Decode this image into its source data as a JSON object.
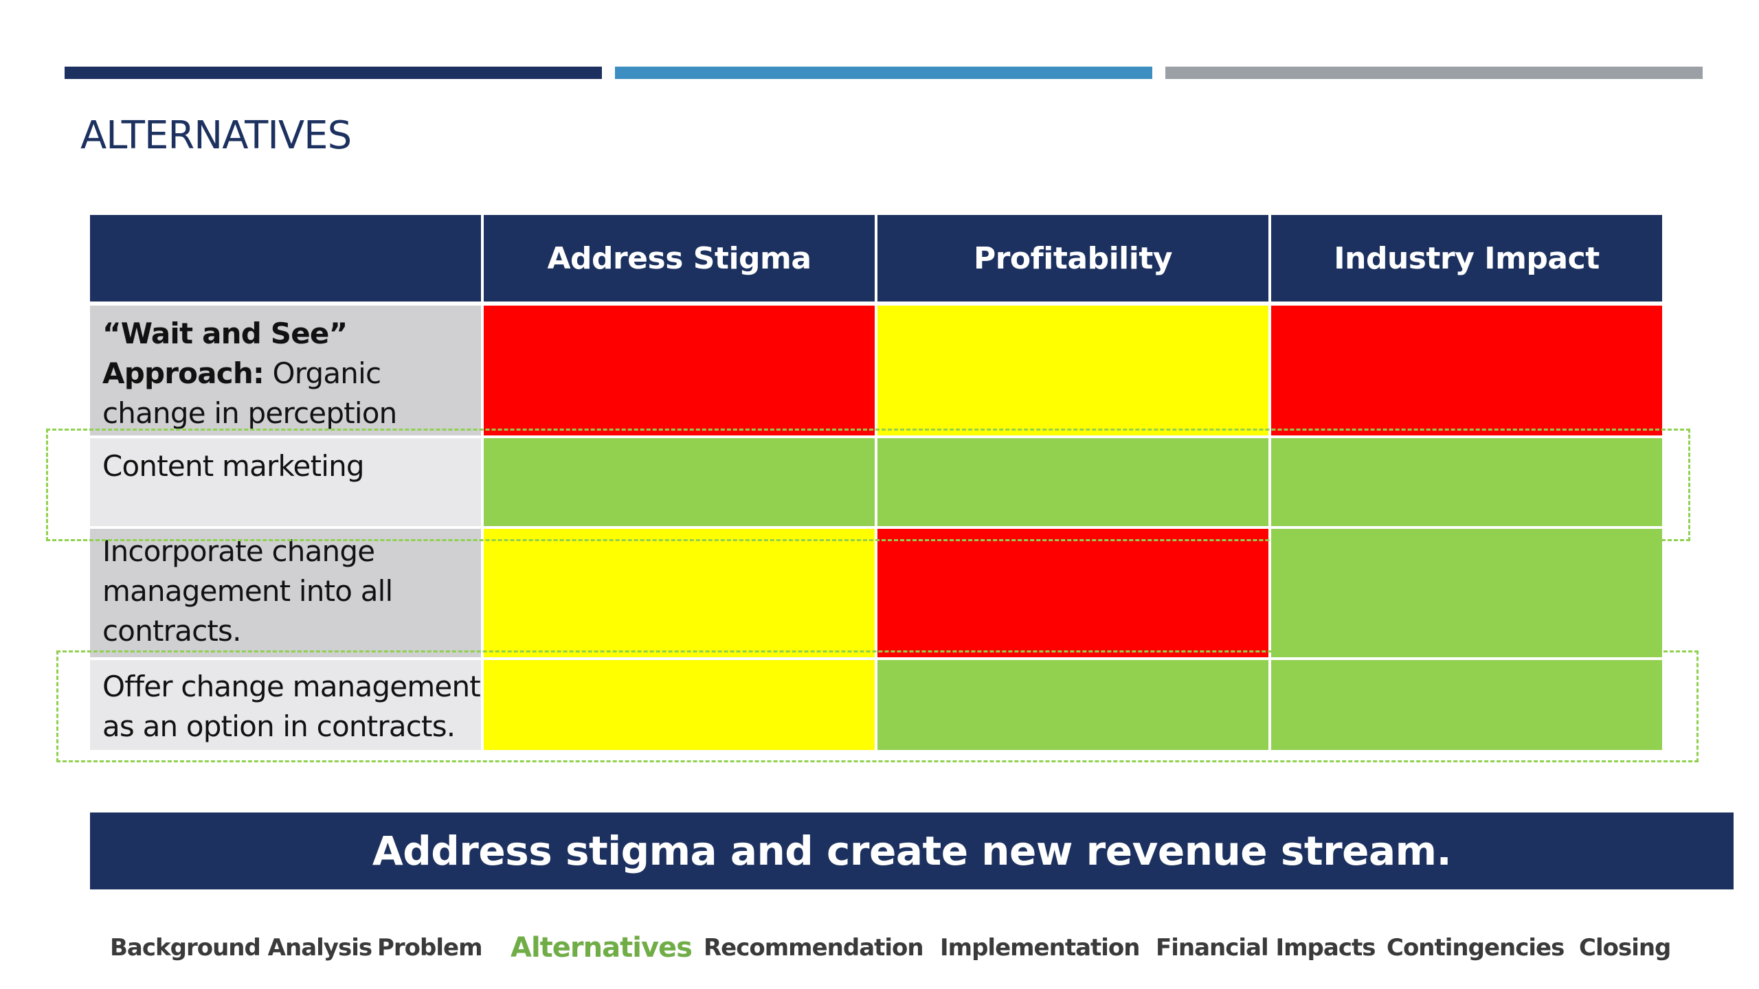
{
  "colors": {
    "navy": "#1c315f",
    "mid_blue": "#3d8fc1",
    "gray": "#9aa0a6",
    "red": "#ff0000",
    "yellow": "#ffff00",
    "green": "#92d050",
    "active_nav": "#70ad47"
  },
  "slide": {
    "title": "ALTERNATIVES"
  },
  "table": {
    "headers": [
      "",
      "Address Stigma",
      "Profitability",
      "Industry Impact"
    ],
    "rows": [
      {
        "label_bold": "“Wait and See” Approach:",
        "label_rest": " Organic change in perception",
        "ratings": [
          "red",
          "yellow",
          "red"
        ]
      },
      {
        "label_bold": "",
        "label_rest": "Content marketing",
        "ratings": [
          "green",
          "green",
          "green"
        ]
      },
      {
        "label_bold": "",
        "label_rest": "Incorporate change management into all contracts.",
        "ratings": [
          "yellow",
          "red",
          "green"
        ]
      },
      {
        "label_bold": "",
        "label_rest": "Offer change management as an option in contracts.",
        "ratings": [
          "yellow",
          "green",
          "green"
        ]
      }
    ]
  },
  "banner": {
    "text": "Address stigma and create new revenue stream."
  },
  "nav": {
    "items": [
      "Background Analysis",
      "Problem",
      "Alternatives",
      "Recommendation",
      "Implementation",
      "Financial Impacts",
      "Contingencies",
      "Closing"
    ],
    "active_index": 2
  }
}
